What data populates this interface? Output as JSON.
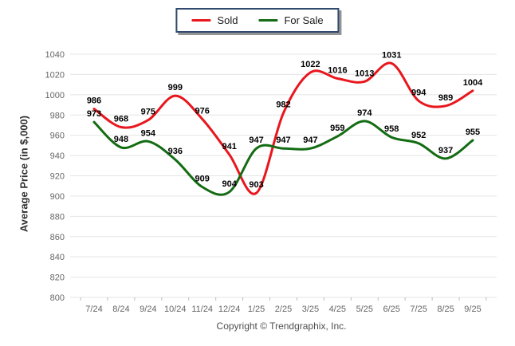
{
  "legend": {
    "sold_label": "Sold",
    "for_sale_label": "For Sale"
  },
  "footer": {
    "text": "Copyright © Trendgraphix, Inc."
  },
  "colors": {
    "sold": "#e8161d",
    "for_sale": "#136c13",
    "grid": "#e4e4e4",
    "axis_tick": "#bbbbbb",
    "axis_text": "#666666",
    "data_label": "#000000",
    "legend_border": "#2f4a6e"
  },
  "chart_data": {
    "type": "line",
    "title": "",
    "xlabel": "",
    "ylabel": "Average Price (in $,000)",
    "ylim": [
      800,
      1040
    ],
    "yticks": [
      800,
      820,
      840,
      860,
      880,
      900,
      920,
      940,
      960,
      980,
      1000,
      1020,
      1040
    ],
    "grid": "horizontal",
    "legend_position": "top-center",
    "data_labels": true,
    "line_style": "smooth",
    "categories": [
      "7/24",
      "8/24",
      "9/24",
      "10/24",
      "11/24",
      "12/24",
      "1/25",
      "2/25",
      "3/25",
      "4/25",
      "5/25",
      "6/25",
      "7/25",
      "8/25",
      "9/25"
    ],
    "series": [
      {
        "name": "Sold",
        "color": "#e8161d",
        "values": [
          986,
          968,
          975,
          999,
          976,
          941,
          903,
          982,
          1022,
          1016,
          1013,
          1031,
          994,
          989,
          1004
        ]
      },
      {
        "name": "For Sale",
        "color": "#136c13",
        "values": [
          973,
          948,
          954,
          936,
          909,
          904,
          947,
          947,
          947,
          959,
          974,
          958,
          952,
          937,
          955
        ]
      }
    ]
  }
}
